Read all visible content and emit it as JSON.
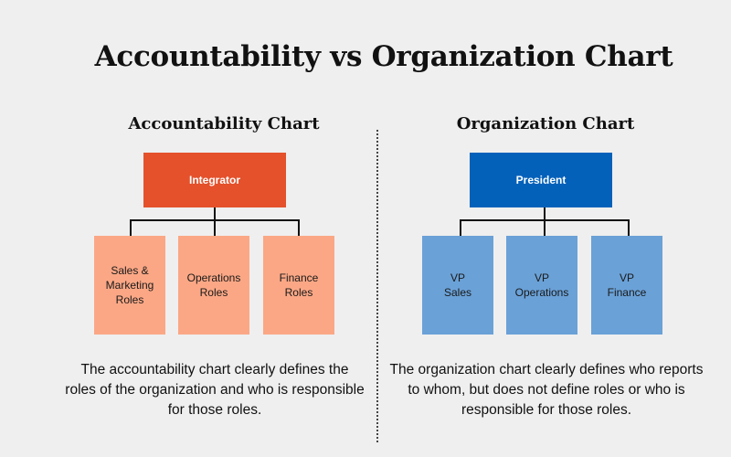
{
  "title": "Accountability vs Organization Chart",
  "accountability": {
    "heading": "Accountability Chart",
    "top": "Integrator",
    "children": [
      "Sales &\nMarketing\nRoles",
      "Operations\nRoles",
      "Finance\nRoles"
    ],
    "description": "The accountability chart clearly defines the roles of the organization and who is responsible for those roles."
  },
  "organization": {
    "heading": "Organization Chart",
    "top": "President",
    "children": [
      "VP\nSales",
      "VP\nOperations",
      "VP\nFinance"
    ],
    "description": "The organization chart clearly defines who reports to whom, but does not define roles or who is responsible for those roles."
  },
  "colors": {
    "accountability_top": "#e4512b",
    "accountability_child": "#fba785",
    "organization_top": "#0461ba",
    "organization_child": "#6aa1d7"
  }
}
